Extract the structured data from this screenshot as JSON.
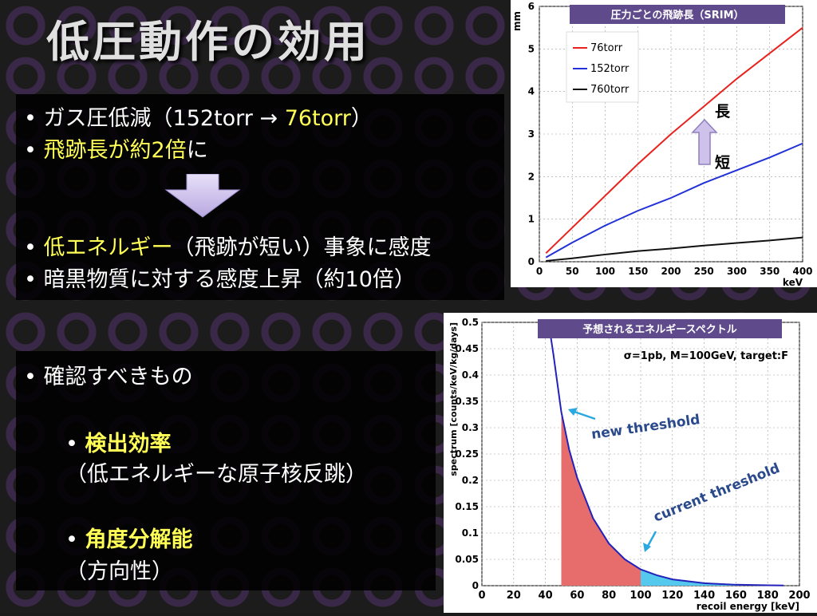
{
  "slide": {
    "title": "低圧動作の効用",
    "box1": {
      "line1_prefix": "ガス圧低減（152torr → ",
      "line1_hl": "76torr",
      "line1_suffix": "）",
      "line2_hl": "飛跡長が約2倍",
      "line2_suffix": "に",
      "line3_hl": "低エネルギー",
      "line3_suffix": "（飛跡が短い）事象に感度",
      "line4": "暗黒物質に対する感度上昇（約10倍）"
    },
    "box2": {
      "head": "確認すべきもの",
      "item1": "検出効率",
      "item1_sub": "（低エネルギーな原子核反跳）",
      "item2": "角度分解能",
      "item2_sub": "（方向性）"
    },
    "bullet": "•"
  },
  "chart_data": [
    {
      "type": "line",
      "title": "圧力ごとの飛跡長（SRIM）",
      "xlabel": "keV",
      "ylabel": "mm",
      "xlim": [
        0,
        400
      ],
      "ylim": [
        0,
        6
      ],
      "xticks": [
        "0",
        "50",
        "100",
        "150",
        "200",
        "250",
        "300",
        "350",
        "400"
      ],
      "yticks": [
        "0",
        "1",
        "2",
        "3",
        "4",
        "5",
        "6"
      ],
      "grid": true,
      "legend": "top-left",
      "series": [
        {
          "name": "76torr",
          "color": "#e8231e",
          "x": [
            10,
            50,
            100,
            150,
            200,
            250,
            300,
            350,
            400
          ],
          "y": [
            0.2,
            0.8,
            1.55,
            2.3,
            3.0,
            3.65,
            4.3,
            4.9,
            5.5
          ]
        },
        {
          "name": "152torr",
          "color": "#2231d8",
          "x": [
            10,
            50,
            100,
            150,
            200,
            250,
            300,
            350,
            400
          ],
          "y": [
            0.1,
            0.45,
            0.85,
            1.2,
            1.5,
            1.85,
            2.15,
            2.45,
            2.78
          ]
        },
        {
          "name": "760torr",
          "color": "#111111",
          "x": [
            10,
            50,
            100,
            150,
            200,
            250,
            300,
            350,
            400
          ],
          "y": [
            0.02,
            0.08,
            0.17,
            0.25,
            0.31,
            0.38,
            0.44,
            0.5,
            0.57
          ]
        }
      ],
      "annotations": {
        "long": "長",
        "short": "短"
      }
    },
    {
      "type": "line",
      "title": "予想されるエネルギースペクトル",
      "subtitle": "σ=1pb, M=100GeV, target:F",
      "xlabel": "recoil energy [keV]",
      "ylabel": "spectrum [counts/keV/kg/days]",
      "xlim": [
        0,
        200
      ],
      "ylim": [
        0,
        0.5
      ],
      "xticks": [
        "0",
        "20",
        "40",
        "60",
        "80",
        "100",
        "120",
        "140",
        "160",
        "180",
        "200"
      ],
      "yticks": [
        "0",
        "0.05",
        "0.1",
        "0.15",
        "0.2",
        "0.25",
        "0.3",
        "0.35",
        "0.4",
        "0.45",
        "0.5"
      ],
      "grid": true,
      "series": [
        {
          "name": "",
          "color": "#2222bb",
          "x": [
            42,
            45,
            50,
            55,
            60,
            70,
            80,
            90,
            100,
            110,
            120,
            140,
            160,
            180,
            190
          ],
          "y": [
            0.5,
            0.44,
            0.33,
            0.258,
            0.205,
            0.128,
            0.08,
            0.05,
            0.031,
            0.02,
            0.012,
            0.0047,
            0.0018,
            0.0007,
            0.0004
          ]
        }
      ],
      "fill_regions": [
        {
          "from": 50,
          "to": 100,
          "color": "#e76d6d"
        },
        {
          "from": 100,
          "to": 190,
          "color": "#55c8ee"
        }
      ],
      "annotations": {
        "new_threshold": "new threshold",
        "current_threshold": "current threshold"
      }
    }
  ]
}
